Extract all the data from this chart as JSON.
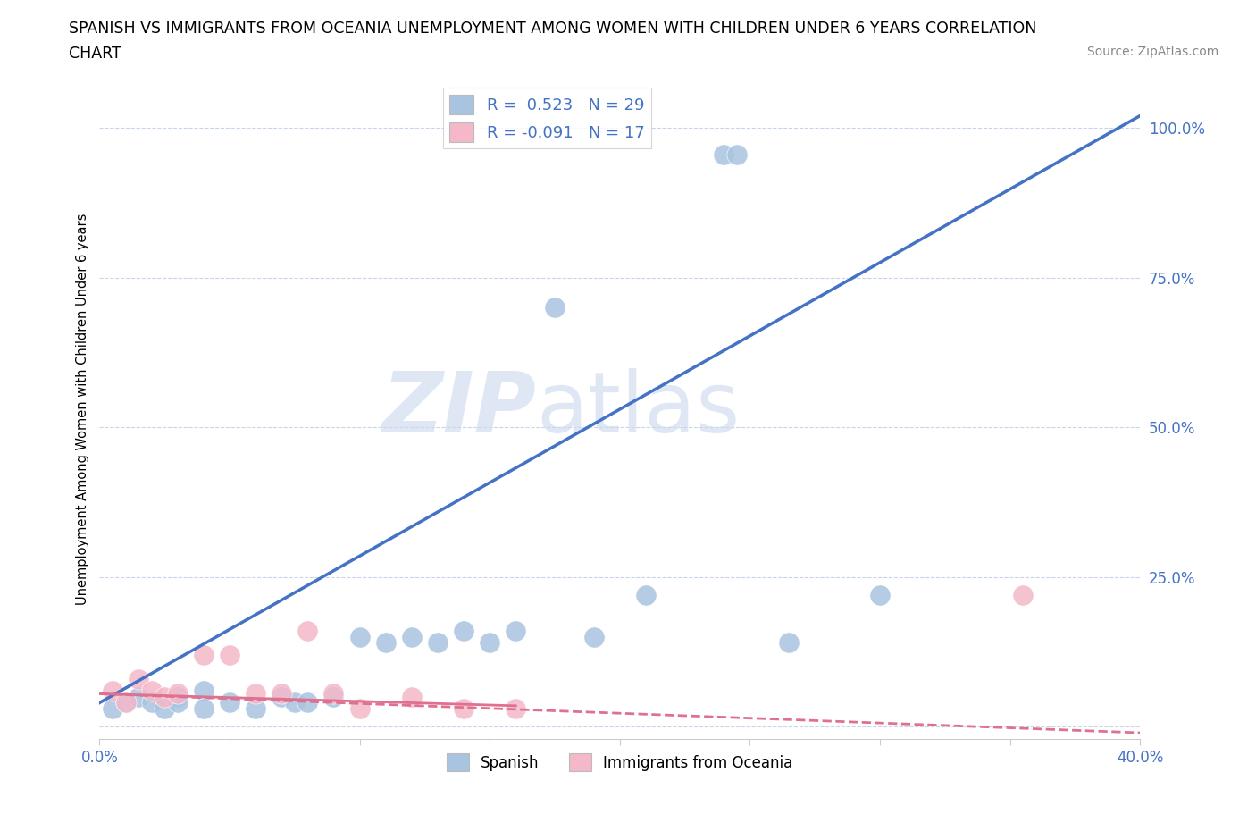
{
  "title_line1": "SPANISH VS IMMIGRANTS FROM OCEANIA UNEMPLOYMENT AMONG WOMEN WITH CHILDREN UNDER 6 YEARS CORRELATION",
  "title_line2": "CHART",
  "source": "Source: ZipAtlas.com",
  "ylabel_label": "Unemployment Among Women with Children Under 6 years",
  "xlim": [
    0.0,
    0.4
  ],
  "ylim": [
    -0.02,
    1.08
  ],
  "xticks": [
    0.0,
    0.05,
    0.1,
    0.15,
    0.2,
    0.25,
    0.3,
    0.35,
    0.4
  ],
  "xticklabels": [
    "0.0%",
    "",
    "",
    "",
    "",
    "",
    "",
    "",
    "40.0%"
  ],
  "ytick_positions": [
    0.0,
    0.25,
    0.5,
    0.75,
    1.0
  ],
  "yticklabels": [
    "",
    "25.0%",
    "50.0%",
    "75.0%",
    "100.0%"
  ],
  "R_spanish": 0.523,
  "N_spanish": 29,
  "R_oceania": -0.091,
  "N_oceania": 17,
  "spanish_color": "#a8c4e0",
  "spanish_line_color": "#4472c4",
  "oceania_color": "#f4b8c8",
  "oceania_line_color": "#e07090",
  "watermark_zip": "ZIP",
  "watermark_atlas": "atlas",
  "background_color": "#ffffff",
  "grid_color": "#c8d4e8",
  "sp_line_x": [
    0.0,
    0.4
  ],
  "sp_line_y": [
    0.04,
    1.02
  ],
  "oc_line_x": [
    0.0,
    0.4
  ],
  "oc_line_y": [
    0.055,
    -0.01
  ],
  "spanish_x": [
    0.005,
    0.01,
    0.015,
    0.02,
    0.025,
    0.03,
    0.03,
    0.04,
    0.04,
    0.05,
    0.06,
    0.07,
    0.075,
    0.08,
    0.09,
    0.1,
    0.11,
    0.12,
    0.13,
    0.14,
    0.15,
    0.16,
    0.175,
    0.19,
    0.21,
    0.24,
    0.245,
    0.265,
    0.3
  ],
  "spanish_y": [
    0.03,
    0.04,
    0.05,
    0.04,
    0.03,
    0.05,
    0.04,
    0.06,
    0.03,
    0.04,
    0.03,
    0.05,
    0.04,
    0.04,
    0.05,
    0.15,
    0.14,
    0.15,
    0.14,
    0.16,
    0.14,
    0.16,
    0.7,
    0.15,
    0.22,
    0.955,
    0.955,
    0.14,
    0.22
  ],
  "oceania_x": [
    0.005,
    0.01,
    0.015,
    0.02,
    0.025,
    0.03,
    0.04,
    0.05,
    0.06,
    0.07,
    0.08,
    0.09,
    0.1,
    0.12,
    0.14,
    0.16,
    0.355
  ],
  "oceania_y": [
    0.06,
    0.04,
    0.08,
    0.06,
    0.05,
    0.055,
    0.12,
    0.12,
    0.055,
    0.055,
    0.16,
    0.055,
    0.03,
    0.05,
    0.03,
    0.03,
    0.22
  ]
}
